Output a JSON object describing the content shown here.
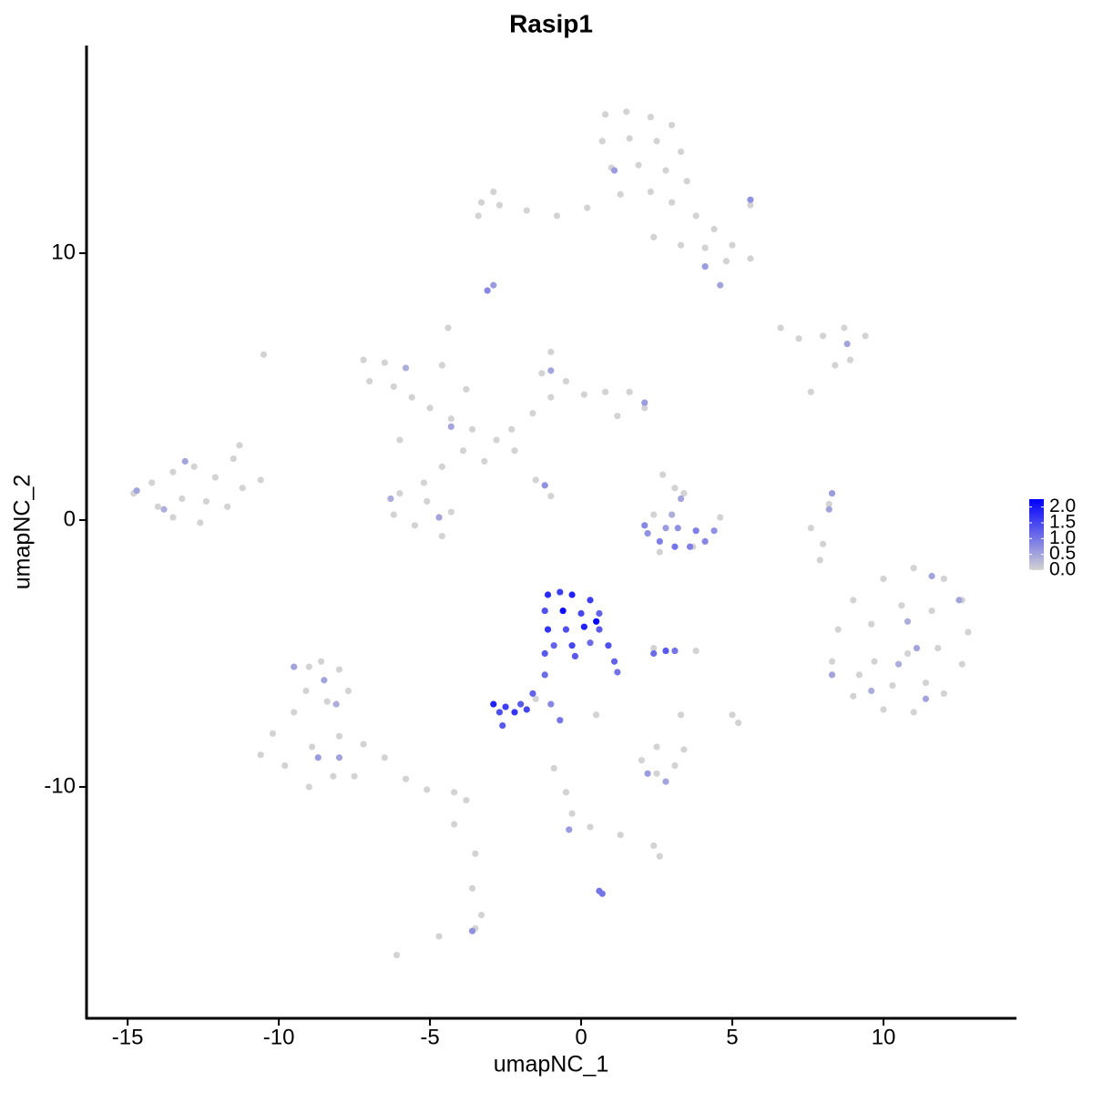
{
  "chart_data": {
    "type": "scatter",
    "title": "Rasip1",
    "x_label": "umapNC_1",
    "y_label": "umapNC_2",
    "xlim": [
      -16.36,
      14.37
    ],
    "ylim": [
      -18.67,
      17.78
    ],
    "xticks": [
      -15,
      -10,
      -5,
      0,
      5,
      10
    ],
    "yticks": [
      -10,
      0,
      10
    ],
    "low_color": "#d3d3d3",
    "high_color": "#0000ff",
    "clim": [
      0,
      2.25
    ],
    "cticks": [
      {
        "value": 0,
        "label": "0.0"
      },
      {
        "value": 0.5,
        "label": "0.5"
      },
      {
        "value": 1,
        "label": "1.0"
      },
      {
        "value": 1.5,
        "label": "1.5"
      },
      {
        "value": 2,
        "label": "2.0"
      }
    ],
    "x": [
      0.8,
      1.5,
      2.3,
      3.0,
      0.7,
      1.6,
      2.5,
      3.3,
      1.0,
      1.9,
      2.8,
      3.5,
      1.3,
      2.3,
      3.0,
      0.2,
      -0.8,
      -1.8,
      -2.7,
      -3.3,
      -2.9,
      -3.4,
      3.8,
      4.4,
      5.0,
      5.6,
      4.8,
      4.1,
      2.4,
      3.3,
      5.6,
      -7.2,
      -6.5,
      -7.0,
      -6.2,
      -5.6,
      -5.0,
      -4.3,
      -3.6,
      -2.8,
      -3.9,
      -4.6,
      -5.2,
      -6.0,
      -5.1,
      -4.3,
      -5.5,
      -4.6,
      -6.2,
      -3.2,
      -2.3,
      -1.6,
      -1.0,
      -1.3,
      -1.0,
      -0.5,
      0.1,
      0.8,
      1.6,
      2.1,
      1.2,
      -1.5,
      -1.0,
      -4.4,
      -4.6,
      -3.8,
      -2.2,
      -10.5,
      -6.0,
      -14.8,
      -14.2,
      -13.5,
      -12.8,
      -12.1,
      -11.5,
      -11.3,
      -10.6,
      -14.0,
      -13.2,
      -12.4,
      -11.7,
      -12.6,
      -13.5,
      -11.2,
      9.0,
      10.0,
      11.0,
      12.0,
      12.6,
      12.8,
      12.6,
      12.0,
      11.0,
      10.0,
      9.0,
      8.3,
      8.5,
      9.6,
      10.6,
      11.6,
      11.8,
      10.8,
      9.7,
      10.3,
      11.4,
      9.2,
      7.9,
      7.6,
      8.2,
      8.0,
      6.6,
      7.2,
      8.0,
      8.7,
      9.4,
      8.9,
      8.4,
      7.6,
      -9.0,
      -8.6,
      -8.0,
      -7.7,
      -9.1,
      -8.4,
      -9.5,
      -10.2,
      -10.6,
      -9.8,
      -8.9,
      -8.0,
      -7.2,
      -6.5,
      -5.8,
      -5.1,
      -4.2,
      -3.8,
      -8.2,
      -7.5,
      -9.0,
      -3.5,
      -3.6,
      -3.3,
      -3.5,
      -6.1,
      -4.7,
      -4.2,
      2.0,
      2.5,
      3.1,
      3.4,
      2.5,
      3.3,
      5.0,
      5.2,
      -0.9,
      -0.5,
      -0.3,
      0.3,
      1.3,
      2.4,
      2.6,
      0.5,
      -1.5,
      2.4,
      3.8,
      2.6,
      3.7,
      4.6,
      3.1,
      2.7,
      3.4,
      2.4,
      1.1,
      5.6,
      4.1,
      4.6,
      -3.1,
      -2.9,
      -1.0,
      2.1,
      -5.8,
      -4.3,
      -1.2,
      -4.7,
      -6.3,
      -13.1,
      -13.8,
      -14.7,
      11.6,
      12.5,
      10.8,
      11.1,
      10.5,
      8.3,
      9.6,
      11.4,
      8.3,
      8.2,
      8.8,
      -9.5,
      -8.5,
      -8.1,
      -8.7,
      -8.0,
      -3.6,
      2.2,
      2.8,
      -0.4,
      0.6,
      0.7,
      2.1,
      2.6,
      3.1,
      3.6,
      4.1,
      4.4,
      3.8,
      3.2,
      2.8,
      3.3,
      3.0,
      2.2,
      -1.1,
      -0.7,
      -0.3,
      0.3,
      -1.2,
      -0.6,
      0.0,
      0.6,
      -1.1,
      -0.5,
      0.1,
      0.6,
      -0.9,
      -0.3,
      0.3,
      0.9,
      1.1,
      1.2,
      -1.2,
      0.5,
      -0.2,
      -1.2,
      -1.6,
      -2.0,
      -2.5,
      -2.9,
      -2.7,
      -2.2,
      -1.8,
      -2.6,
      -1.0,
      -0.7,
      2.4,
      2.8,
      3.1
    ],
    "y": [
      15.2,
      15.3,
      15.1,
      14.8,
      14.2,
      14.3,
      14.2,
      13.8,
      13.2,
      13.3,
      13.1,
      12.7,
      12.2,
      12.3,
      11.9,
      11.7,
      11.4,
      11.6,
      11.8,
      11.9,
      12.3,
      11.4,
      11.4,
      10.9,
      10.3,
      9.8,
      9.7,
      10.2,
      10.6,
      10.3,
      11.8,
      6.0,
      5.9,
      5.2,
      5.0,
      4.6,
      4.2,
      3.8,
      3.4,
      3.0,
      2.6,
      2.0,
      1.4,
      1.0,
      0.7,
      0.3,
      -0.2,
      -0.6,
      0.2,
      2.2,
      3.4,
      4.0,
      4.6,
      5.5,
      6.3,
      5.2,
      4.7,
      4.8,
      4.8,
      4.2,
      3.9,
      1.5,
      0.9,
      7.2,
      5.8,
      4.9,
      2.6,
      6.2,
      3.0,
      1.0,
      1.4,
      1.8,
      2.0,
      1.6,
      2.3,
      2.8,
      1.5,
      0.5,
      0.8,
      0.7,
      0.5,
      -0.1,
      0.1,
      1.2,
      -3.0,
      -2.2,
      -1.8,
      -2.2,
      -3.0,
      -4.2,
      -5.4,
      -6.5,
      -7.2,
      -7.1,
      -6.6,
      -5.3,
      -4.1,
      -3.9,
      -3.2,
      -3.4,
      -4.8,
      -5.0,
      -5.3,
      -6.2,
      -6.1,
      -5.8,
      -1.5,
      -0.3,
      0.6,
      -0.9,
      7.2,
      6.8,
      6.9,
      7.2,
      6.9,
      6.0,
      5.8,
      4.8,
      -5.5,
      -5.3,
      -5.6,
      -6.4,
      -6.4,
      -6.8,
      -7.2,
      -8.0,
      -8.8,
      -9.2,
      -8.5,
      -8.1,
      -8.4,
      -8.9,
      -9.7,
      -10.1,
      -10.2,
      -10.5,
      -9.6,
      -9.6,
      -10.0,
      -12.5,
      -13.8,
      -14.8,
      -15.3,
      -16.3,
      -15.6,
      -11.4,
      -9.0,
      -9.5,
      -9.2,
      -8.6,
      -8.5,
      -7.3,
      -7.3,
      -7.6,
      -9.3,
      -10.2,
      -11.0,
      -11.5,
      -11.8,
      -12.2,
      -12.6,
      -7.3,
      -6.7,
      -4.8,
      -4.9,
      -1.2,
      -1.0,
      0.1,
      1.2,
      1.7,
      1.0,
      0.2,
      13.1,
      12.0,
      9.5,
      8.8,
      8.6,
      8.8,
      5.6,
      4.4,
      5.7,
      3.5,
      1.3,
      0.1,
      0.8,
      2.2,
      0.4,
      1.1,
      -2.1,
      -3.0,
      -3.8,
      -4.8,
      -5.4,
      -5.8,
      -6.4,
      -6.7,
      1.0,
      0.4,
      6.6,
      -5.5,
      -6.0,
      -6.9,
      -8.9,
      -8.9,
      -15.4,
      -9.5,
      -9.8,
      -11.6,
      -13.9,
      -14.0,
      -0.2,
      -0.8,
      -1.0,
      -1.0,
      -0.8,
      -0.4,
      -0.4,
      -0.3,
      -0.3,
      0.8,
      0.2,
      -0.5,
      -2.8,
      -2.7,
      -2.8,
      -3.0,
      -3.4,
      -3.4,
      -3.5,
      -3.5,
      -4.1,
      -4.1,
      -4.0,
      -4.1,
      -4.7,
      -4.7,
      -4.6,
      -4.7,
      -5.3,
      -5.7,
      -5.0,
      -3.8,
      -5.1,
      -5.8,
      -6.5,
      -6.9,
      -7.0,
      -6.9,
      -7.2,
      -7.2,
      -7.1,
      -7.7,
      -6.9,
      -7.5,
      -5.0,
      -4.9,
      -4.9
    ],
    "values": [
      0,
      0,
      0,
      0,
      0,
      0,
      0,
      0,
      0,
      0,
      0,
      0,
      0,
      0,
      0,
      0,
      0,
      0,
      0,
      0,
      0,
      0,
      0,
      0,
      0,
      0,
      0,
      0,
      0,
      0,
      0,
      0,
      0,
      0,
      0,
      0,
      0,
      0,
      0,
      0,
      0,
      0,
      0,
      0,
      0,
      0,
      0,
      0,
      0,
      0,
      0,
      0,
      0,
      0,
      0,
      0,
      0,
      0,
      0,
      0,
      0,
      0,
      0,
      0,
      0,
      0,
      0,
      0,
      0,
      0,
      0,
      0,
      0,
      0,
      0,
      0,
      0,
      0,
      0,
      0,
      0,
      0,
      0,
      0,
      0,
      0,
      0,
      0,
      0,
      0,
      0,
      0,
      0,
      0,
      0,
      0,
      0,
      0,
      0,
      0,
      0,
      0,
      0,
      0,
      0,
      0,
      0,
      0,
      0,
      0,
      0,
      0,
      0,
      0,
      0,
      0,
      0,
      0,
      0,
      0,
      0,
      0,
      0,
      0,
      0,
      0,
      0,
      0,
      0,
      0,
      0,
      0,
      0,
      0,
      0,
      0,
      0,
      0,
      0,
      0,
      0,
      0,
      0,
      0,
      0,
      0,
      0,
      0,
      0,
      0,
      0,
      0,
      0,
      0,
      0,
      0,
      0,
      0,
      0,
      0,
      0,
      0,
      0,
      0,
      0,
      0,
      0,
      0,
      0,
      0,
      0,
      0,
      0.6,
      0.7,
      0.6,
      0.5,
      0.8,
      0.6,
      0.5,
      0.6,
      0.4,
      0.5,
      0.7,
      0.5,
      0.4,
      0.5,
      0.4,
      0.5,
      0.5,
      0.5,
      0.4,
      0.5,
      0.4,
      0.5,
      0.4,
      0.5,
      0.6,
      0.5,
      0.5,
      0.5,
      0.5,
      0.4,
      0.6,
      0.5,
      0.7,
      0.6,
      0.5,
      0.6,
      1.0,
      1.0,
      0.8,
      0.9,
      1.0,
      0.9,
      0.8,
      0.7,
      0.9,
      0.7,
      0.6,
      0.5,
      0.4,
      0.7,
      1.8,
      1.6,
      1.9,
      1.6,
      1.4,
      2.1,
      1.5,
      1.2,
      1.7,
      1.4,
      1.9,
      1.3,
      1.2,
      1.5,
      1.1,
      1.4,
      1.2,
      1.0,
      1.3,
      2.2,
      1.3,
      1.1,
      1.2,
      1.3,
      1.6,
      1.9,
      1.4,
      1.7,
      1.5,
      1.3,
      0.8,
      1.0,
      1.1,
      1.3,
      1.0
    ]
  }
}
